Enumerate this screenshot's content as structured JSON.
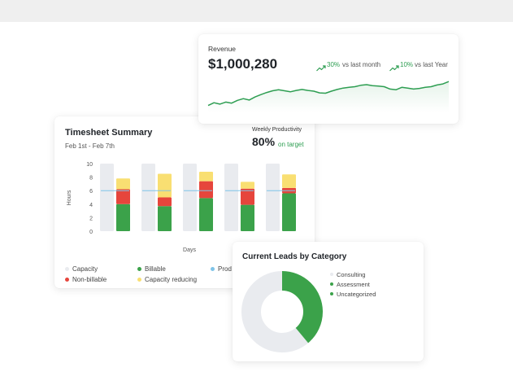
{
  "revenue": {
    "title": "Revenue",
    "amount": "$1,000,280",
    "change_month_pct": "30%",
    "change_month_label": "vs last month",
    "change_year_pct": "10%",
    "change_year_label": "vs last Year",
    "trend_icon": "trending-up-icon",
    "line_color": "#2e9e52",
    "trend": [
      0.2,
      0.28,
      0.24,
      0.3,
      0.27,
      0.35,
      0.4,
      0.36,
      0.45,
      0.52,
      0.58,
      0.63,
      0.66,
      0.63,
      0.6,
      0.64,
      0.67,
      0.64,
      0.62,
      0.57,
      0.56,
      0.62,
      0.67,
      0.71,
      0.73,
      0.75,
      0.79,
      0.81,
      0.78,
      0.77,
      0.75,
      0.68,
      0.66,
      0.73,
      0.71,
      0.68,
      0.7,
      0.73,
      0.75,
      0.8,
      0.83,
      0.9
    ]
  },
  "timesheet": {
    "title": "Timesheet Summary",
    "date_range": "Feb 1st - Feb 7th",
    "productivity_label": "Weekly Productivity",
    "productivity_value": "80%",
    "productivity_status": "on target",
    "legend": [
      {
        "label": "Capacity",
        "color": "#e9ebef"
      },
      {
        "label": "Non-billable",
        "color": "#e6453c"
      },
      {
        "label": "Billable",
        "color": "#3ba24a"
      },
      {
        "label": "Capacity reducing",
        "color": "#f9df72"
      },
      {
        "label": "Prod",
        "color": "#7fc4e8"
      }
    ]
  },
  "chart_data": {
    "type": "bar",
    "stacked": true,
    "categories": [
      "",
      "",
      "",
      "",
      ""
    ],
    "xlabel": "Days",
    "ylabel": "Hours",
    "ylim": [
      0,
      10
    ],
    "yticks": [
      0,
      2,
      4,
      6,
      8,
      10
    ],
    "capacity": [
      10,
      10,
      10,
      10,
      10
    ],
    "productivity_line": [
      6,
      6,
      6,
      6,
      6
    ],
    "series": [
      {
        "name": "Billable",
        "color": "#3ba24a",
        "values": [
          4.0,
          3.7,
          4.9,
          3.9,
          5.6
        ]
      },
      {
        "name": "Non-billable",
        "color": "#e6453c",
        "values": [
          2.2,
          1.3,
          2.5,
          2.4,
          0.8
        ]
      },
      {
        "name": "Capacity reducing",
        "color": "#f9df72",
        "values": [
          1.6,
          3.5,
          1.4,
          1.0,
          2.0
        ]
      }
    ]
  },
  "leads": {
    "title": "Current Leads by Category",
    "legend": [
      {
        "label": "Consulting",
        "color": "#e9ebef"
      },
      {
        "label": "Assessment",
        "color": "#3ba24a"
      },
      {
        "label": "Uncategorized",
        "color": "#3ba24a"
      }
    ],
    "donut": [
      {
        "name": "Consulting",
        "value": 61,
        "color": "#e9ebef"
      },
      {
        "name": "Assessment",
        "value": 39,
        "color": "#3ba24a"
      }
    ]
  }
}
